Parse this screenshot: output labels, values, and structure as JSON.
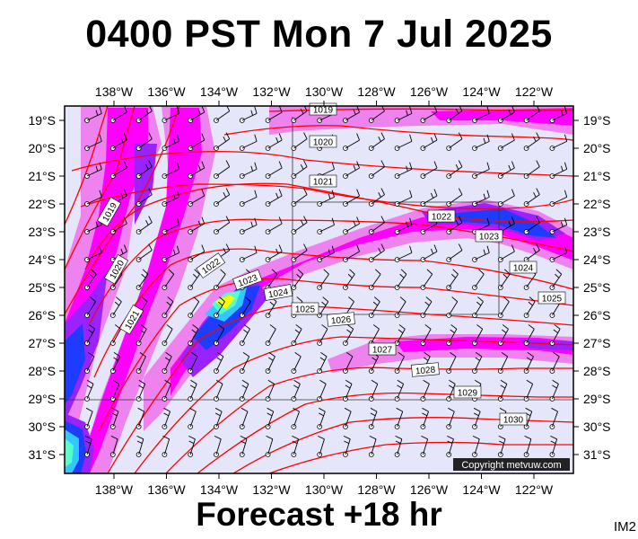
{
  "header": {
    "title": "0400 PST Mon 7 Jul 2025"
  },
  "footer": {
    "forecast": "Forecast +18 hr",
    "product": "IM2"
  },
  "map": {
    "lon_labels": [
      "138°W",
      "136°W",
      "134°W",
      "132°W",
      "130°W",
      "128°W",
      "126°W",
      "124°W",
      "122°W"
    ],
    "lat_labels": [
      "19°S",
      "20°S",
      "21°S",
      "22°S",
      "23°S",
      "24°S",
      "25°S",
      "26°S",
      "27°S",
      "28°S",
      "29°S",
      "30°S",
      "31°S"
    ],
    "isobar_labels": [
      "1019",
      "1020",
      "1021",
      "1022",
      "1023",
      "1024",
      "1025",
      "1026",
      "1027",
      "1028",
      "1029",
      "1030"
    ],
    "copyright": "Copyright metvuw.com",
    "colors": {
      "background": "#e6e6fa",
      "light_magenta": "#ee82ee",
      "magenta": "#ff00ff",
      "purple": "#9a22ff",
      "blue": "#1e3cff",
      "cyan": "#32c8ff",
      "aqua": "#55ffcc",
      "yellow": "#ffff00",
      "isobar": "#ff0000"
    }
  }
}
